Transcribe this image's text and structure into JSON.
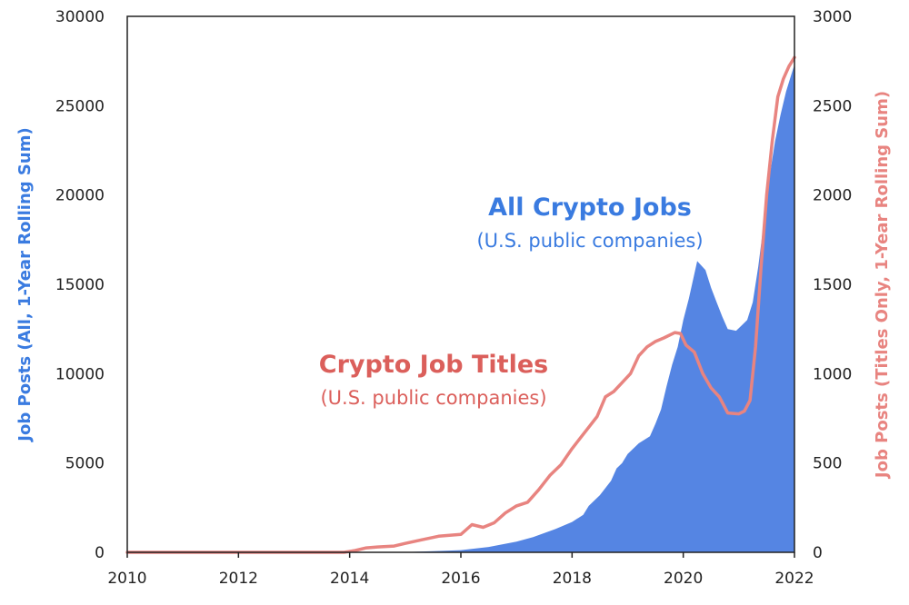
{
  "chart_data": {
    "type": "area",
    "xlim": [
      2010,
      2022
    ],
    "x_ticks": [
      "2010",
      "2012",
      "2014",
      "2016",
      "2018",
      "2020",
      "2022"
    ],
    "y_left": {
      "label": "Job Posts (All, 1-Year Rolling Sum)",
      "range": [
        0,
        30000
      ],
      "ticks": [
        "0",
        "5000",
        "10000",
        "15000",
        "20000",
        "25000",
        "30000"
      ]
    },
    "y_right": {
      "label": "Job Posts (Titles Only, 1-Year Rolling Sum)",
      "range": [
        0,
        3000
      ],
      "ticks": [
        "0",
        "500",
        "1000",
        "1500",
        "2000",
        "2500",
        "3000"
      ]
    },
    "grid": false,
    "legend": "none",
    "series": [
      {
        "name": "All Crypto Jobs",
        "subtitle": "(U.S. public companies)",
        "type": "area",
        "axis": "left",
        "color": "#5585e3",
        "label_color": "#3a7be0",
        "points": [
          [
            2010,
            0
          ],
          [
            2014.0,
            0
          ],
          [
            2015.0,
            10
          ],
          [
            2015.5,
            60
          ],
          [
            2016.0,
            120
          ],
          [
            2016.5,
            300
          ],
          [
            2017.0,
            600
          ],
          [
            2017.3,
            850
          ],
          [
            2017.7,
            1300
          ],
          [
            2018.0,
            1700
          ],
          [
            2018.2,
            2100
          ],
          [
            2018.3,
            2600
          ],
          [
            2018.5,
            3200
          ],
          [
            2018.7,
            4000
          ],
          [
            2018.8,
            4700
          ],
          [
            2018.9,
            5000
          ],
          [
            2019.0,
            5500
          ],
          [
            2019.2,
            6100
          ],
          [
            2019.4,
            6500
          ],
          [
            2019.5,
            7200
          ],
          [
            2019.6,
            8000
          ],
          [
            2019.7,
            9300
          ],
          [
            2019.8,
            10500
          ],
          [
            2019.9,
            11500
          ],
          [
            2020.0,
            13000
          ],
          [
            2020.1,
            14200
          ],
          [
            2020.25,
            16300
          ],
          [
            2020.4,
            15800
          ],
          [
            2020.5,
            14800
          ],
          [
            2020.6,
            14000
          ],
          [
            2020.7,
            13200
          ],
          [
            2020.8,
            12500
          ],
          [
            2020.95,
            12400
          ],
          [
            2021.05,
            12700
          ],
          [
            2021.15,
            13000
          ],
          [
            2021.25,
            14000
          ],
          [
            2021.35,
            16000
          ],
          [
            2021.45,
            18500
          ],
          [
            2021.55,
            21000
          ],
          [
            2021.65,
            23000
          ],
          [
            2021.75,
            24500
          ],
          [
            2021.85,
            25800
          ],
          [
            2021.95,
            26800
          ],
          [
            2022.0,
            27300
          ]
        ]
      },
      {
        "name": "Crypto Job Titles",
        "subtitle": "(U.S. public companies)",
        "type": "line",
        "axis": "right",
        "color": "#e88480",
        "label_color": "#db5f5b",
        "points": [
          [
            2010,
            0
          ],
          [
            2013.9,
            0
          ],
          [
            2014.1,
            10
          ],
          [
            2014.3,
            25
          ],
          [
            2014.5,
            30
          ],
          [
            2014.8,
            35
          ],
          [
            2015.0,
            50
          ],
          [
            2015.3,
            70
          ],
          [
            2015.6,
            90
          ],
          [
            2016.0,
            100
          ],
          [
            2016.2,
            155
          ],
          [
            2016.4,
            140
          ],
          [
            2016.6,
            165
          ],
          [
            2016.8,
            220
          ],
          [
            2017.0,
            260
          ],
          [
            2017.2,
            280
          ],
          [
            2017.4,
            350
          ],
          [
            2017.6,
            430
          ],
          [
            2017.8,
            490
          ],
          [
            2018.0,
            580
          ],
          [
            2018.15,
            640
          ],
          [
            2018.3,
            700
          ],
          [
            2018.45,
            760
          ],
          [
            2018.6,
            870
          ],
          [
            2018.75,
            900
          ],
          [
            2018.9,
            950
          ],
          [
            2019.05,
            1000
          ],
          [
            2019.2,
            1100
          ],
          [
            2019.35,
            1150
          ],
          [
            2019.5,
            1180
          ],
          [
            2019.65,
            1200
          ],
          [
            2019.85,
            1230
          ],
          [
            2019.95,
            1225
          ],
          [
            2020.05,
            1160
          ],
          [
            2020.2,
            1120
          ],
          [
            2020.35,
            1000
          ],
          [
            2020.5,
            920
          ],
          [
            2020.65,
            870
          ],
          [
            2020.8,
            780
          ],
          [
            2021.0,
            775
          ],
          [
            2021.1,
            790
          ],
          [
            2021.2,
            850
          ],
          [
            2021.3,
            1150
          ],
          [
            2021.4,
            1600
          ],
          [
            2021.5,
            2000
          ],
          [
            2021.6,
            2300
          ],
          [
            2021.7,
            2550
          ],
          [
            2021.8,
            2650
          ],
          [
            2021.9,
            2720
          ],
          [
            2022.0,
            2770
          ]
        ]
      }
    ]
  }
}
